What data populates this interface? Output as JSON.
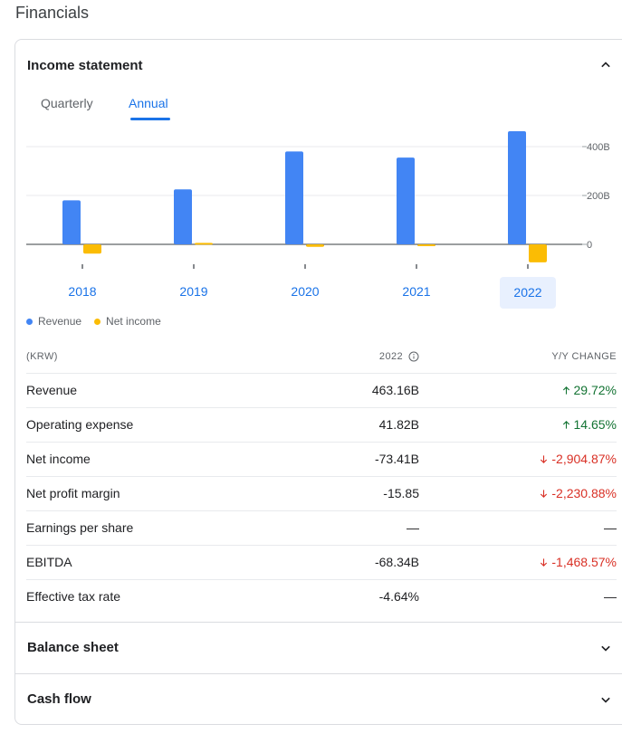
{
  "page": {
    "title": "Financials"
  },
  "income": {
    "title": "Income statement",
    "tabs": [
      {
        "label": "Quarterly",
        "active": false
      },
      {
        "label": "Annual",
        "active": true
      }
    ]
  },
  "chart_data": {
    "type": "bar",
    "categories": [
      "2018",
      "2019",
      "2020",
      "2021",
      "2022"
    ],
    "selected_category": "2022",
    "series": [
      {
        "name": "Revenue",
        "color": "#4285f4",
        "values": [
          180,
          225,
          380,
          355,
          463.16
        ]
      },
      {
        "name": "Net income",
        "color": "#fbbc04",
        "values": [
          -38,
          6,
          -10,
          -2,
          -73.41
        ]
      }
    ],
    "y_tick_labels": [
      "400B",
      "200B",
      "0"
    ],
    "y_ticks": [
      400,
      200,
      0
    ],
    "ylim": [
      -80,
      430
    ],
    "grid": true,
    "legend_position": "bottom-left"
  },
  "table": {
    "headers": {
      "unit": "(KRW)",
      "year": "2022",
      "change": "Y/Y CHANGE"
    },
    "rows": [
      {
        "label": "Revenue",
        "value": "463.16B",
        "change": "29.72%",
        "dir": "up"
      },
      {
        "label": "Operating expense",
        "value": "41.82B",
        "change": "14.65%",
        "dir": "up"
      },
      {
        "label": "Net income",
        "value": "-73.41B",
        "change": "-2,904.87%",
        "dir": "down"
      },
      {
        "label": "Net profit margin",
        "value": "-15.85",
        "change": "-2,230.88%",
        "dir": "down"
      },
      {
        "label": "Earnings per share",
        "value": "—",
        "change": "—",
        "dir": "flat"
      },
      {
        "label": "EBITDA",
        "value": "-68.34B",
        "change": "-1,468.57%",
        "dir": "down"
      },
      {
        "label": "Effective tax rate",
        "value": "-4.64%",
        "change": "—",
        "dir": "flat"
      }
    ]
  },
  "sections": [
    {
      "title": "Balance sheet"
    },
    {
      "title": "Cash flow"
    }
  ],
  "colors": {
    "accent": "#1a73e8",
    "up": "#137333",
    "down": "#d93025"
  }
}
